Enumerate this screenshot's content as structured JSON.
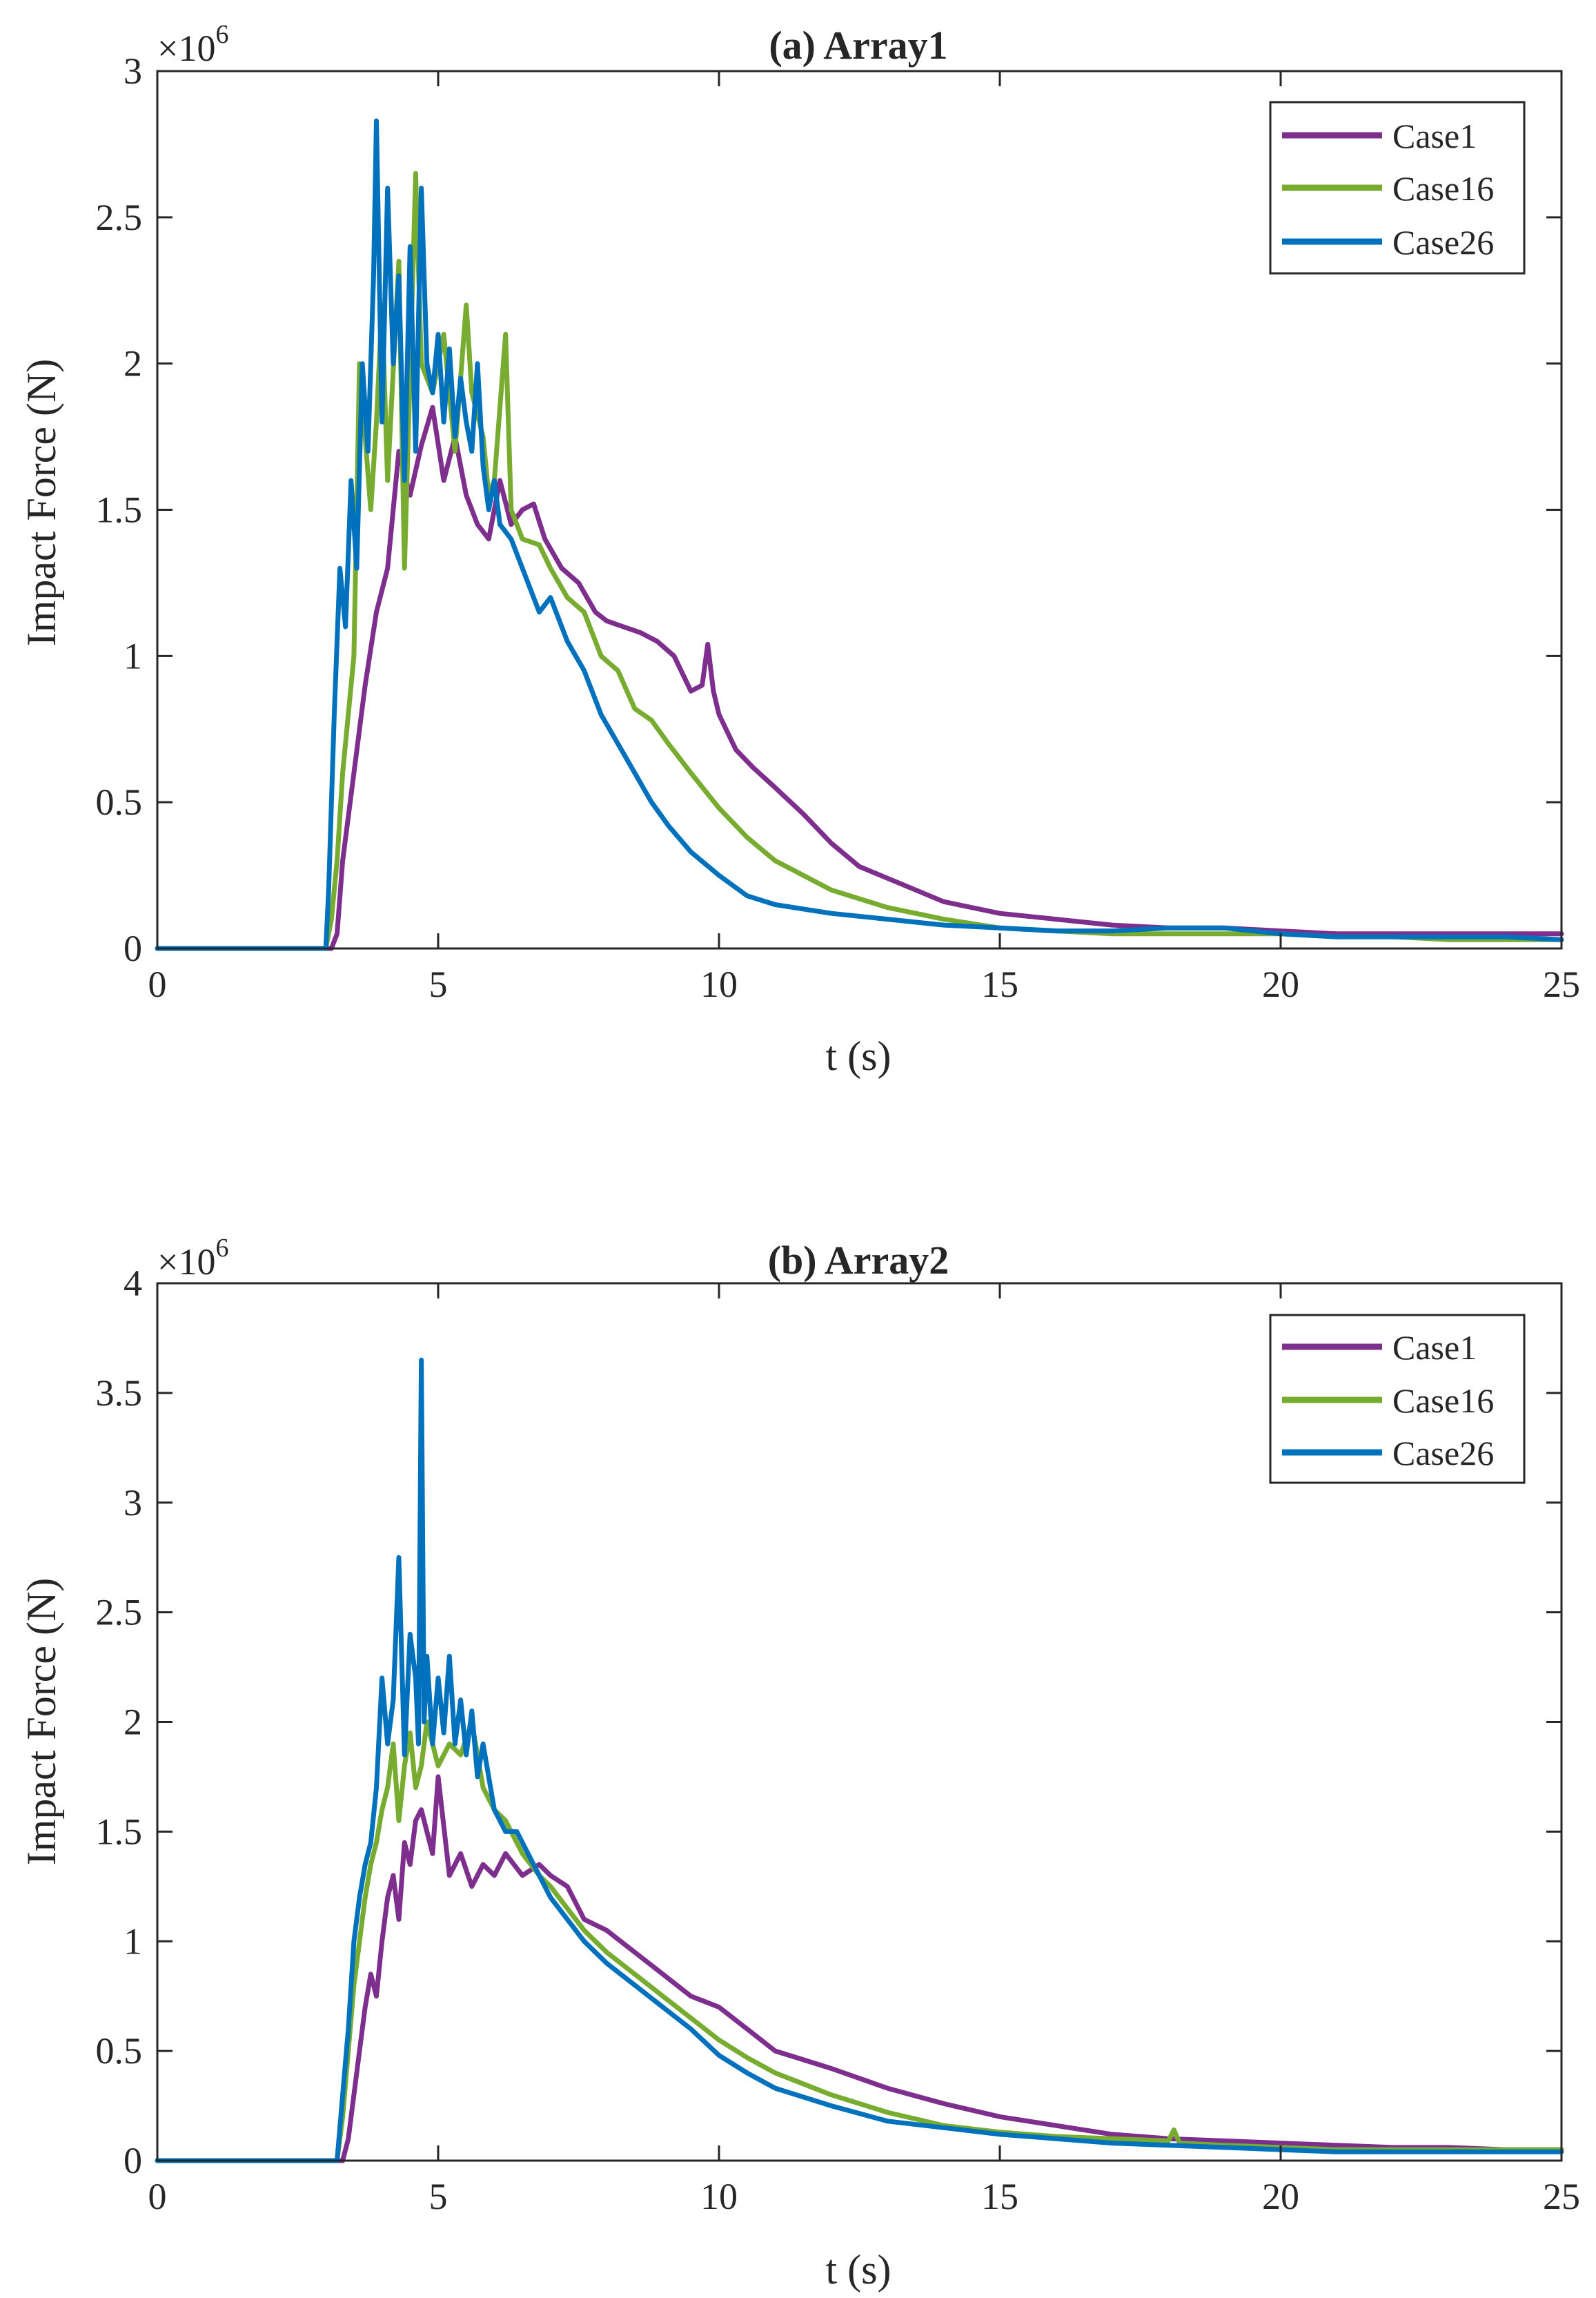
{
  "colors": {
    "Case1": "#7E2F8E",
    "Case16": "#77AC30",
    "Case26": "#0072BD",
    "axis": "#262626",
    "background": "#FFFFFF"
  },
  "chart_data": [
    {
      "type": "line",
      "title": "(a) Array1",
      "xlabel": "t (s)",
      "ylabel": "Impact Force (N)",
      "y_multiplier_base": "×10",
      "y_multiplier_exp": "6",
      "xlim": [
        0,
        25
      ],
      "ylim": [
        0,
        3
      ],
      "xticks": [
        0,
        5,
        10,
        15,
        20,
        25
      ],
      "xtick_labels": [
        "0",
        "5",
        "10",
        "15",
        "20",
        "25"
      ],
      "yticks": [
        0,
        0.5,
        1,
        1.5,
        2,
        2.5,
        3
      ],
      "ytick_labels": [
        "0",
        "0.5",
        "1",
        "1.5",
        "2",
        "2.5",
        "3"
      ],
      "grid": false,
      "legend_position": "top-right",
      "series": [
        {
          "name": "Case1",
          "x": [
            0,
            3.0,
            3.1,
            3.2,
            3.3,
            3.5,
            3.7,
            3.9,
            4.1,
            4.3,
            4.5,
            4.7,
            4.9,
            5.1,
            5.3,
            5.5,
            5.7,
            5.9,
            6.1,
            6.3,
            6.5,
            6.7,
            6.9,
            7.2,
            7.5,
            7.8,
            8.0,
            8.3,
            8.6,
            8.9,
            9.2,
            9.5,
            9.7,
            9.8,
            9.9,
            10.0,
            10.3,
            10.6,
            11.0,
            11.5,
            12.0,
            12.5,
            13.0,
            14.0,
            15.0,
            16.0,
            17.0,
            18.0,
            19.0,
            20.0,
            21.0,
            22.0,
            23.0,
            24.0,
            25.0
          ],
          "values": [
            0,
            0,
            0,
            0.05,
            0.3,
            0.6,
            0.9,
            1.15,
            1.3,
            1.7,
            1.55,
            1.72,
            1.85,
            1.6,
            1.75,
            1.55,
            1.45,
            1.4,
            1.6,
            1.45,
            1.5,
            1.52,
            1.4,
            1.3,
            1.25,
            1.15,
            1.12,
            1.1,
            1.08,
            1.05,
            1.0,
            0.88,
            0.9,
            1.04,
            0.88,
            0.8,
            0.68,
            0.62,
            0.55,
            0.46,
            0.36,
            0.28,
            0.24,
            0.16,
            0.12,
            0.1,
            0.08,
            0.07,
            0.07,
            0.06,
            0.05,
            0.05,
            0.05,
            0.05,
            0.05
          ]
        },
        {
          "name": "Case16",
          "x": [
            0,
            3.0,
            3.1,
            3.2,
            3.3,
            3.5,
            3.6,
            3.8,
            3.9,
            4.0,
            4.1,
            4.3,
            4.4,
            4.6,
            4.7,
            4.9,
            5.1,
            5.3,
            5.5,
            5.6,
            5.8,
            5.9,
            6.0,
            6.2,
            6.3,
            6.5,
            6.8,
            7.0,
            7.3,
            7.6,
            7.9,
            8.2,
            8.5,
            8.8,
            9.1,
            9.5,
            10.0,
            10.5,
            11.0,
            12.0,
            13.0,
            14.0,
            15.0,
            16.0,
            17.0,
            18.0,
            19.0,
            20.0,
            21.0,
            22.0,
            23.0,
            24.0,
            25.0
          ],
          "values": [
            0,
            0,
            0.1,
            0.3,
            0.6,
            1.0,
            2.0,
            1.5,
            1.8,
            2.2,
            1.6,
            2.35,
            1.3,
            2.65,
            2.0,
            1.9,
            2.1,
            1.7,
            2.2,
            1.9,
            1.75,
            1.55,
            1.6,
            2.1,
            1.5,
            1.4,
            1.38,
            1.3,
            1.2,
            1.15,
            1.0,
            0.95,
            0.82,
            0.78,
            0.7,
            0.6,
            0.48,
            0.38,
            0.3,
            0.2,
            0.14,
            0.1,
            0.07,
            0.06,
            0.05,
            0.05,
            0.05,
            0.05,
            0.04,
            0.04,
            0.03,
            0.03,
            0.03
          ]
        },
        {
          "name": "Case26",
          "x": [
            0,
            3.0,
            3.05,
            3.15,
            3.25,
            3.35,
            3.45,
            3.55,
            3.65,
            3.75,
            3.85,
            3.9,
            4.0,
            4.1,
            4.2,
            4.3,
            4.4,
            4.5,
            4.6,
            4.7,
            4.8,
            4.9,
            5.0,
            5.1,
            5.2,
            5.3,
            5.4,
            5.5,
            5.6,
            5.7,
            5.8,
            5.9,
            6.0,
            6.1,
            6.3,
            6.5,
            6.8,
            7.0,
            7.3,
            7.6,
            7.9,
            8.2,
            8.5,
            8.8,
            9.1,
            9.5,
            10.0,
            10.5,
            11.0,
            12.0,
            13.0,
            14.0,
            15.0,
            16.0,
            17.0,
            18.0,
            19.0,
            20.0,
            21.0,
            22.0,
            23.0,
            24.0,
            25.0
          ],
          "values": [
            0,
            0,
            0.2,
            0.8,
            1.3,
            1.1,
            1.6,
            1.3,
            2.0,
            1.7,
            2.3,
            2.83,
            1.8,
            2.6,
            2.0,
            2.3,
            1.6,
            2.4,
            1.7,
            2.6,
            2.0,
            1.9,
            2.1,
            1.8,
            2.05,
            1.75,
            1.95,
            1.8,
            1.7,
            2.0,
            1.65,
            1.5,
            1.6,
            1.45,
            1.4,
            1.3,
            1.15,
            1.2,
            1.05,
            0.95,
            0.8,
            0.7,
            0.6,
            0.5,
            0.42,
            0.33,
            0.25,
            0.18,
            0.15,
            0.12,
            0.1,
            0.08,
            0.07,
            0.06,
            0.06,
            0.07,
            0.07,
            0.05,
            0.04,
            0.04,
            0.04,
            0.04,
            0.03
          ]
        }
      ]
    },
    {
      "type": "line",
      "title": "(b) Array2",
      "xlabel": "t (s)",
      "ylabel": "Impact Force (N)",
      "y_multiplier_base": "×10",
      "y_multiplier_exp": "6",
      "xlim": [
        0,
        25
      ],
      "ylim": [
        0,
        4
      ],
      "xticks": [
        0,
        5,
        10,
        15,
        20,
        25
      ],
      "xtick_labels": [
        "0",
        "5",
        "10",
        "15",
        "20",
        "25"
      ],
      "yticks": [
        0,
        0.5,
        1,
        1.5,
        2,
        2.5,
        3,
        3.5,
        4
      ],
      "ytick_labels": [
        "0",
        "0.5",
        "1",
        "1.5",
        "2",
        "2.5",
        "3",
        "3.5",
        "4"
      ],
      "grid": false,
      "legend_position": "top-right",
      "series": [
        {
          "name": "Case1",
          "x": [
            0,
            3.3,
            3.4,
            3.5,
            3.6,
            3.7,
            3.8,
            3.9,
            4.0,
            4.1,
            4.2,
            4.3,
            4.4,
            4.5,
            4.6,
            4.7,
            4.8,
            4.9,
            5.0,
            5.2,
            5.4,
            5.6,
            5.8,
            6.0,
            6.2,
            6.5,
            6.8,
            7.0,
            7.3,
            7.6,
            8.0,
            8.5,
            9.0,
            9.5,
            10.0,
            10.5,
            11.0,
            12.0,
            13.0,
            14.0,
            15.0,
            16.0,
            17.0,
            18.0,
            19.0,
            20.0,
            21.0,
            22.0,
            23.0,
            24.0,
            25.0
          ],
          "values": [
            0,
            0,
            0.1,
            0.3,
            0.5,
            0.7,
            0.85,
            0.75,
            1.0,
            1.2,
            1.3,
            1.1,
            1.45,
            1.35,
            1.55,
            1.6,
            1.5,
            1.4,
            1.75,
            1.3,
            1.4,
            1.25,
            1.35,
            1.3,
            1.4,
            1.3,
            1.35,
            1.3,
            1.25,
            1.1,
            1.05,
            0.95,
            0.85,
            0.75,
            0.7,
            0.6,
            0.5,
            0.42,
            0.33,
            0.26,
            0.2,
            0.16,
            0.12,
            0.1,
            0.09,
            0.08,
            0.07,
            0.06,
            0.06,
            0.05,
            0.05
          ]
        },
        {
          "name": "Case16",
          "x": [
            0,
            3.2,
            3.3,
            3.4,
            3.5,
            3.6,
            3.7,
            3.8,
            3.9,
            4.0,
            4.1,
            4.2,
            4.3,
            4.4,
            4.5,
            4.6,
            4.7,
            4.8,
            5.0,
            5.2,
            5.4,
            5.6,
            5.8,
            6.0,
            6.2,
            6.5,
            6.8,
            7.0,
            7.3,
            7.6,
            8.0,
            8.5,
            9.0,
            9.5,
            10.0,
            10.5,
            11.0,
            12.0,
            13.0,
            14.0,
            15.0,
            16.0,
            17.0,
            18.0,
            18.1,
            18.2,
            19.0,
            20.0,
            21.0,
            22.0,
            23.0,
            24.0,
            25.0
          ],
          "values": [
            0,
            0,
            0.2,
            0.5,
            0.8,
            1.0,
            1.2,
            1.35,
            1.45,
            1.6,
            1.7,
            1.9,
            1.55,
            1.8,
            1.95,
            1.7,
            1.8,
            2.0,
            1.8,
            1.9,
            1.85,
            2.0,
            1.7,
            1.6,
            1.55,
            1.4,
            1.3,
            1.25,
            1.15,
            1.05,
            0.95,
            0.85,
            0.75,
            0.65,
            0.55,
            0.47,
            0.4,
            0.3,
            0.22,
            0.16,
            0.13,
            0.11,
            0.1,
            0.09,
            0.14,
            0.08,
            0.07,
            0.06,
            0.05,
            0.05,
            0.05,
            0.05,
            0.05
          ]
        },
        {
          "name": "Case26",
          "x": [
            0,
            3.2,
            3.3,
            3.4,
            3.5,
            3.6,
            3.7,
            3.8,
            3.9,
            4.0,
            4.1,
            4.2,
            4.3,
            4.4,
            4.5,
            4.6,
            4.65,
            4.7,
            4.75,
            4.8,
            4.9,
            5.0,
            5.1,
            5.2,
            5.3,
            5.4,
            5.5,
            5.6,
            5.7,
            5.8,
            6.0,
            6.2,
            6.4,
            6.6,
            6.8,
            7.0,
            7.3,
            7.6,
            8.0,
            8.5,
            9.0,
            9.5,
            10.0,
            10.5,
            11.0,
            12.0,
            13.0,
            14.0,
            15.0,
            16.0,
            17.0,
            18.0,
            19.0,
            20.0,
            21.0,
            22.0,
            23.0,
            24.0,
            25.0
          ],
          "values": [
            0,
            0,
            0.3,
            0.6,
            1.0,
            1.2,
            1.35,
            1.45,
            1.7,
            2.2,
            1.9,
            2.1,
            2.75,
            1.85,
            2.4,
            2.2,
            1.9,
            3.65,
            2.0,
            2.3,
            1.9,
            2.2,
            1.95,
            2.3,
            1.9,
            2.1,
            1.85,
            2.05,
            1.75,
            1.9,
            1.6,
            1.5,
            1.5,
            1.4,
            1.3,
            1.2,
            1.1,
            1.0,
            0.9,
            0.8,
            0.7,
            0.6,
            0.48,
            0.4,
            0.33,
            0.25,
            0.18,
            0.15,
            0.12,
            0.1,
            0.08,
            0.07,
            0.06,
            0.05,
            0.04,
            0.04,
            0.04,
            0.04,
            0.04
          ]
        }
      ]
    }
  ]
}
